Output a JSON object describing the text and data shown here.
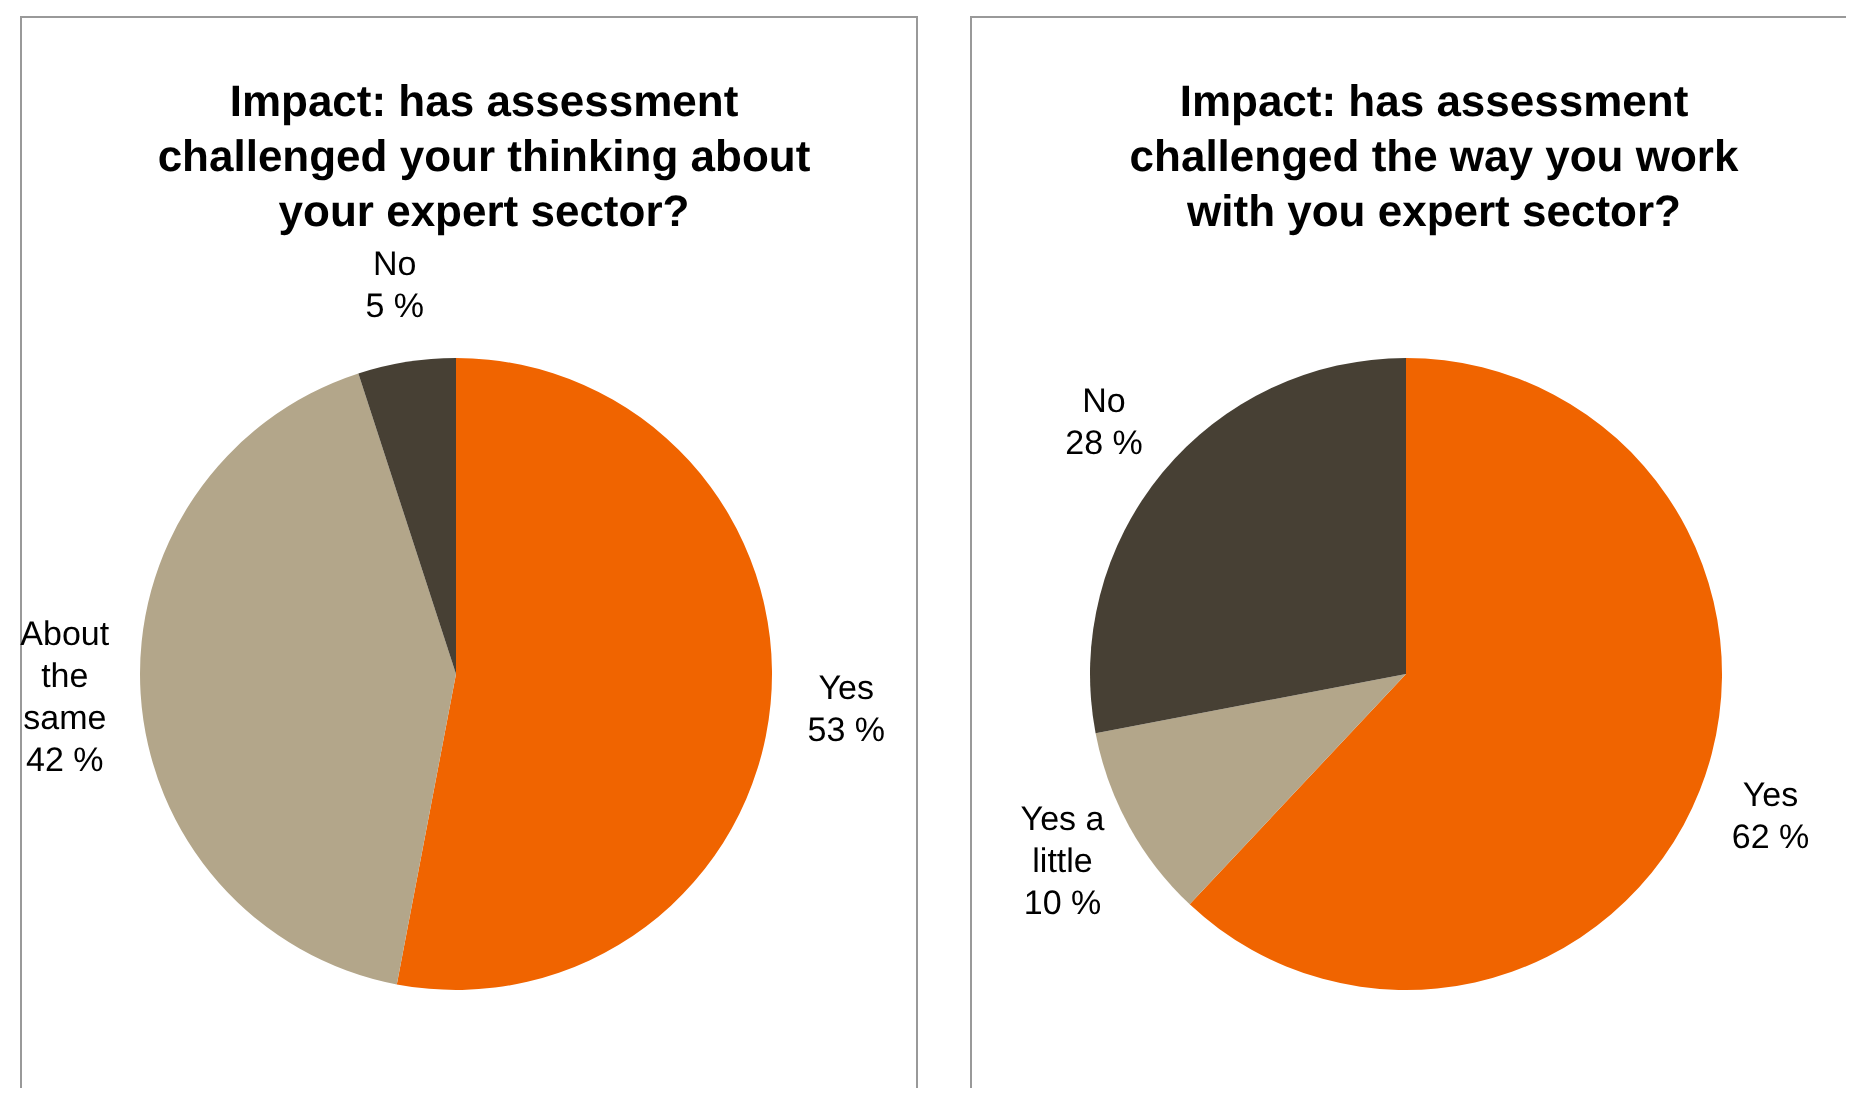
{
  "chart_data": [
    {
      "type": "pie",
      "title": "Impact: has assessment challenged your thinking about your expert sector?",
      "categories": [
        "Yes",
        "About the same",
        "No"
      ],
      "values": [
        53,
        42,
        5
      ],
      "value_labels": [
        "53 %",
        "42 %",
        "5 %"
      ],
      "colors": [
        "#f06400",
        "#b3a68a",
        "#474034"
      ]
    },
    {
      "type": "pie",
      "title": "Impact: has assessment challenged the way you work with you expert sector?",
      "categories": [
        "Yes",
        "Yes a little",
        "No"
      ],
      "values": [
        62,
        10,
        28
      ],
      "value_labels": [
        "62 %",
        "10 %",
        "28 %"
      ],
      "colors": [
        "#f06400",
        "#b3a68a",
        "#474034"
      ]
    }
  ]
}
